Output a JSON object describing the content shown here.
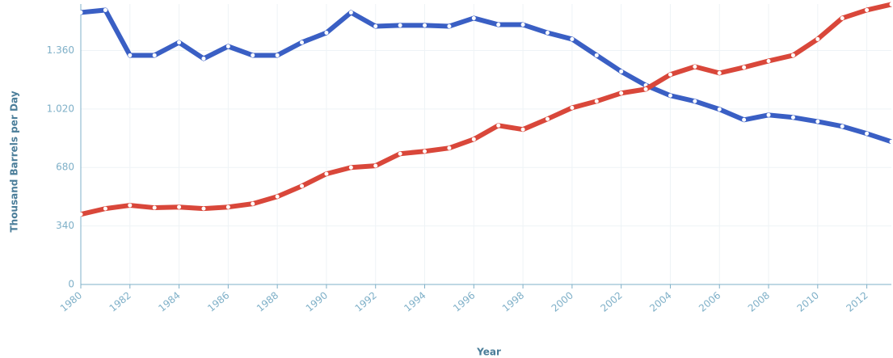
{
  "chart_data": {
    "type": "line",
    "x_label": "Year",
    "y_label": "Thousand Barrels per Day",
    "x": [
      1980,
      1981,
      1982,
      1983,
      1984,
      1985,
      1986,
      1987,
      1988,
      1989,
      1990,
      1991,
      1992,
      1993,
      1994,
      1995,
      1996,
      1997,
      1998,
      1999,
      2000,
      2001,
      2002,
      2003,
      2004,
      2005,
      2006,
      2007,
      2008,
      2009,
      2010,
      2011,
      2012,
      2013
    ],
    "xlim": [
      1980,
      2013
    ],
    "xticks": [
      1980,
      1982,
      1984,
      1986,
      1988,
      1990,
      1992,
      1994,
      1996,
      1998,
      2000,
      2002,
      2004,
      2006,
      2008,
      2010,
      2012
    ],
    "ylim": [
      0,
      1630
    ],
    "yticks": [
      0,
      340,
      680,
      {
        "value": 1020,
        "label": "1.020"
      },
      {
        "value": 1360,
        "label": "1.360"
      }
    ],
    "grid": true,
    "series": [
      {
        "color": "#3a5fc4",
        "values": [
          1581,
          1595,
          1332,
          1332,
          1407,
          1313,
          1384,
          1332,
          1332,
          1407,
          1463,
          1581,
          1501,
          1506,
          1506,
          1501,
          1548,
          1510,
          1510,
          1463,
          1426,
          1332,
          1238,
          1158,
          1098,
          1065,
          1018,
          957,
          985,
          971,
          947,
          919,
          877,
          830
        ]
      },
      {
        "color": "#d9473a",
        "values": [
          408,
          441,
          460,
          446,
          450,
          441,
          450,
          469,
          511,
          572,
          643,
          680,
          690,
          760,
          774,
          793,
          844,
          924,
          901,
          962,
          1027,
          1065,
          1112,
          1135,
          1220,
          1266,
          1229,
          1262,
          1299,
          1332,
          1426,
          1548,
          1595,
          1628
        ]
      }
    ]
  }
}
